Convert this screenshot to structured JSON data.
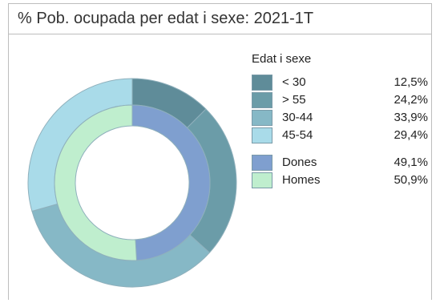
{
  "panel": {
    "title": "% Pob. ocupada per edat i sexe: 2021-1T"
  },
  "chart_data": {
    "type": "pie",
    "title": "% Pob. ocupada per edat i sexe: 2021-1T",
    "legend_title": "Edat i sexe",
    "legend_placement": "right",
    "rings": [
      {
        "ring": "outer",
        "slices": [
          {
            "label": "< 30",
            "display": "12,5%",
            "value": 12.5,
            "color": "#5f8c99"
          },
          {
            "label": "> 55",
            "display": "24,2%",
            "value": 24.2,
            "color": "#6b9ca8"
          },
          {
            "label": "30-44",
            "display": "33,9%",
            "value": 33.9,
            "color": "#86b8c6"
          },
          {
            "label": "45-54",
            "display": "29,4%",
            "value": 29.4,
            "color": "#a9dbe9"
          }
        ]
      },
      {
        "ring": "inner",
        "slices": [
          {
            "label": "Dones",
            "display": "49,1%",
            "value": 49.1,
            "color": "#7f9fcf"
          },
          {
            "label": "Homes",
            "display": "50,9%",
            "value": 50.9,
            "color": "#bfeece"
          }
        ]
      }
    ]
  }
}
